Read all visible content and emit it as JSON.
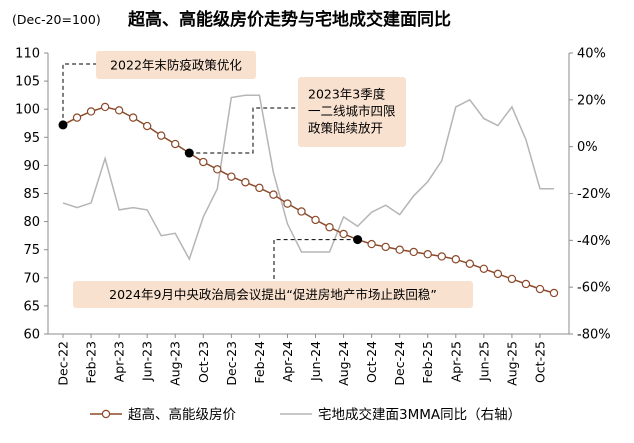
{
  "chart_data": {
    "type": "line",
    "title": "超高、高能级房价走势与宅地成交建面同比",
    "subtitle": "(Dec-20=100)",
    "x_tick_labels": [
      "Dec-22",
      "Feb-23",
      "Apr-23",
      "Jun-23",
      "Aug-23",
      "Oct-23",
      "Dec-23",
      "Feb-24",
      "Apr-24",
      "Jun-24",
      "Aug-24",
      "Oct-24",
      "Dec-24",
      "Feb-25",
      "Apr-25",
      "Jun-25",
      "Aug-25",
      "Oct-25"
    ],
    "y_left": {
      "min": 60,
      "max": 110,
      "step": 5,
      "tick_labels": [
        "60",
        "65",
        "70",
        "75",
        "80",
        "85",
        "90",
        "95",
        "100",
        "105",
        "110"
      ]
    },
    "y_right": {
      "min": -80,
      "max": 40,
      "step": 20,
      "tick_labels": [
        "-80%",
        "-60%",
        "-40%",
        "-20%",
        "0%",
        "20%",
        "40%"
      ]
    },
    "grid": false,
    "legend_position": "bottom",
    "series": [
      {
        "name": "超高、高能级房价",
        "axis": "left",
        "style": "line-with-hollow-markers",
        "color": "#8B4A2B",
        "x": [
          "Dec-22",
          "Jan-23",
          "Feb-23",
          "Mar-23",
          "Apr-23",
          "May-23",
          "Jun-23",
          "Jul-23",
          "Aug-23",
          "Sep-23",
          "Oct-23",
          "Nov-23",
          "Dec-23",
          "Jan-24",
          "Feb-24",
          "Mar-24",
          "Apr-24",
          "May-24",
          "Jun-24",
          "Jul-24",
          "Aug-24",
          "Sep-24",
          "Oct-24",
          "Nov-24",
          "Dec-24",
          "Jan-25",
          "Feb-25",
          "Mar-25",
          "Apr-25",
          "May-25",
          "Jun-25",
          "Jul-25",
          "Aug-25",
          "Sep-25",
          "Oct-25",
          "Nov-25"
        ],
        "values": [
          97.2,
          98.5,
          99.6,
          100.4,
          99.8,
          98.5,
          97.0,
          95.3,
          93.8,
          92.2,
          90.6,
          89.3,
          88.0,
          87.0,
          86.0,
          84.8,
          83.2,
          81.8,
          80.3,
          79.0,
          77.8,
          76.8,
          76.0,
          75.5,
          75.0,
          74.6,
          74.2,
          73.8,
          73.3,
          72.5,
          71.6,
          70.7,
          69.8,
          68.9,
          68.0,
          67.3
        ]
      },
      {
        "name": "宅地成交建面3MMA同比（右轴）",
        "axis": "right",
        "style": "line",
        "color": "#B5B5B5",
        "x": [
          "Dec-22",
          "Jan-23",
          "Feb-23",
          "Mar-23",
          "Apr-23",
          "May-23",
          "Jun-23",
          "Jul-23",
          "Aug-23",
          "Sep-23",
          "Oct-23",
          "Nov-23",
          "Dec-23",
          "Jan-24",
          "Feb-24",
          "Mar-24",
          "Apr-24",
          "May-24",
          "Jun-24",
          "Jul-24",
          "Aug-24",
          "Sep-24",
          "Oct-24",
          "Nov-24",
          "Dec-24",
          "Jan-25",
          "Feb-25",
          "Mar-25",
          "Apr-25",
          "May-25",
          "Jun-25",
          "Jul-25",
          "Aug-25",
          "Sep-25",
          "Oct-25",
          "Nov-25"
        ],
        "values": [
          -24,
          -26,
          -24,
          -5,
          -27,
          -26,
          -27,
          -38,
          -37,
          -48,
          -30,
          -18,
          21,
          22,
          22,
          -11,
          -33,
          -45,
          -45,
          -45,
          -30,
          -34,
          -28,
          -25,
          -29,
          -21,
          -15,
          -6,
          17,
          20,
          12,
          9,
          17,
          3,
          -18,
          -18
        ]
      }
    ],
    "highlight_points": [
      {
        "series": "超高、高能级房价",
        "x": "Dec-22",
        "value": 97.2
      },
      {
        "series": "超高、高能级房价",
        "x": "Sep-23",
        "value": 92.2
      },
      {
        "series": "超高、高能级房价",
        "x": "Sep-24",
        "value": 76.8
      }
    ],
    "annotations": [
      {
        "text": "2022年末防疫政策优化",
        "anchor_x": "Dec-22"
      },
      {
        "text": "2023年3季度一二线城市四限政策陆续放开",
        "anchor_x": "Sep-23"
      },
      {
        "text": "2024年9月中央政治局会议提出“促进房地产市场止跌回稳”",
        "anchor_x": "Sep-24"
      }
    ],
    "legend": [
      {
        "label": "超高、高能级房价",
        "series_index": 0
      },
      {
        "label": "宅地成交建面3MMA同比（右轴）",
        "series_index": 1
      }
    ]
  },
  "colors": {
    "annotation_fill": "#F9E1CF",
    "highlight_marker": "#000000",
    "axis": "#8C8C8C",
    "text": "#000000"
  }
}
